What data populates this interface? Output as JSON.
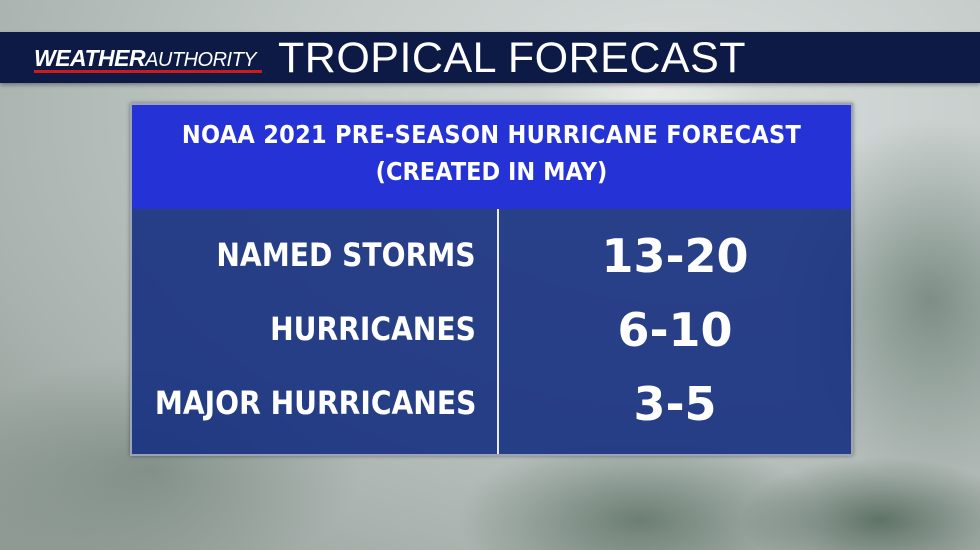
{
  "header": {
    "brand_weather": "WEATHER",
    "brand_authority": "AUTHORITY",
    "title": "TROPICAL FORECAST"
  },
  "panel": {
    "heading_line1": "NOAA 2021 PRE-SEASON HURRICANE FORECAST",
    "heading_line2": "(CREATED IN MAY)",
    "rows": [
      {
        "label": "NAMED STORMS",
        "value": "13-20"
      },
      {
        "label": "HURRICANES",
        "value": "6-10"
      },
      {
        "label": "MAJOR HURRICANES",
        "value": "3-5"
      }
    ]
  },
  "colors": {
    "header_bg": "#0d1a45",
    "panel_bg": "#163080",
    "panel_head_bg": "#2533d6",
    "brand_accent": "#d01a1a"
  }
}
